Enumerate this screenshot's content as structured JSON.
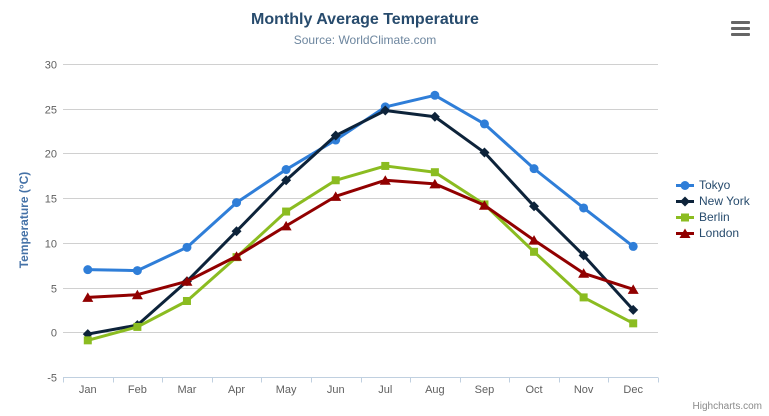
{
  "chart": {
    "title": "Monthly Average Temperature",
    "subtitle": "Source: WorldClimate.com",
    "y_axis_title": "Temperature (°C)",
    "credits": "Highcharts.com"
  },
  "colors": {
    "title": "#274b6d",
    "subtitle": "#6d869f",
    "y_axis_title": "#4572a7",
    "axis_labels": "#606060",
    "legend_text": "#274b6d",
    "grid_line": "#d0d0d0",
    "axis_line": "#c0d0e0",
    "credits": "#8a8a8a",
    "menu_icon": "#666666"
  },
  "chart_data": {
    "type": "line",
    "title": "Monthly Average Temperature",
    "subtitle": "Source: WorldClimate.com",
    "xlabel": "",
    "ylabel": "Temperature (°C)",
    "ylim": [
      -5,
      30
    ],
    "ytick_step": 5,
    "grid": true,
    "legend_position": "right",
    "categories": [
      "Jan",
      "Feb",
      "Mar",
      "Apr",
      "May",
      "Jun",
      "Jul",
      "Aug",
      "Sep",
      "Oct",
      "Nov",
      "Dec"
    ],
    "series": [
      {
        "name": "Tokyo",
        "color": "#2f7ed8",
        "marker": "circle",
        "values": [
          7.0,
          6.9,
          9.5,
          14.5,
          18.2,
          21.5,
          25.2,
          26.5,
          23.3,
          18.3,
          13.9,
          9.6
        ]
      },
      {
        "name": "New York",
        "color": "#0d233a",
        "marker": "diamond",
        "values": [
          -0.2,
          0.8,
          5.7,
          11.3,
          17.0,
          22.0,
          24.8,
          24.1,
          20.1,
          14.1,
          8.6,
          2.5
        ]
      },
      {
        "name": "Berlin",
        "color": "#8bbc21",
        "marker": "square",
        "values": [
          -0.9,
          0.6,
          3.5,
          8.4,
          13.5,
          17.0,
          18.6,
          17.9,
          14.3,
          9.0,
          3.9,
          1.0
        ]
      },
      {
        "name": "London",
        "color": "#910000",
        "marker": "triangle",
        "values": [
          3.9,
          4.2,
          5.7,
          8.5,
          11.9,
          15.2,
          17.0,
          16.6,
          14.2,
          10.3,
          6.6,
          4.8
        ]
      }
    ],
    "credits": "Highcharts.com"
  }
}
